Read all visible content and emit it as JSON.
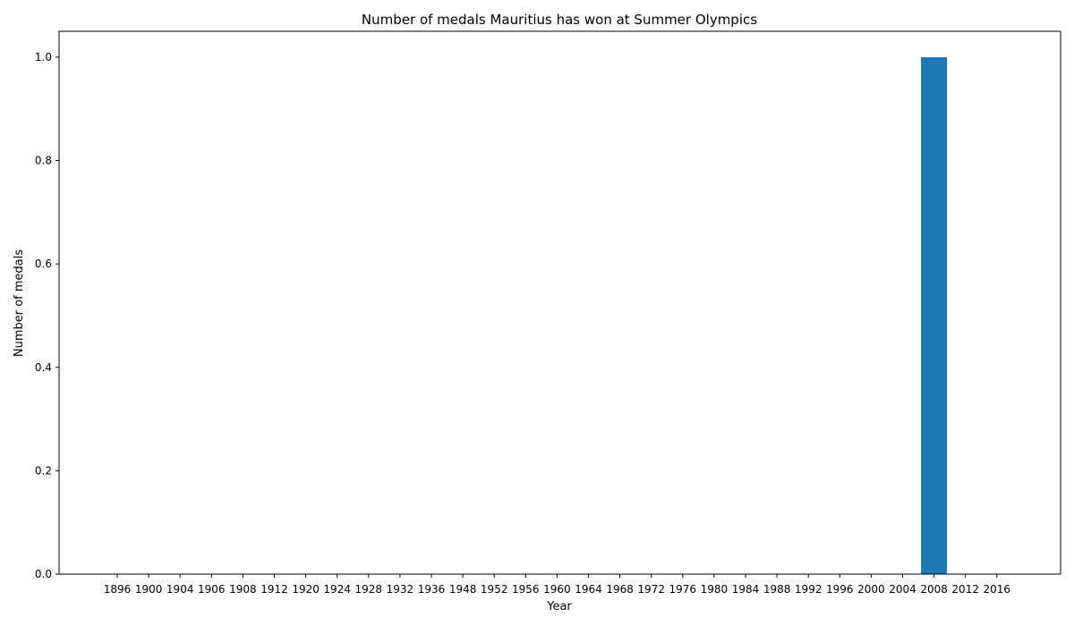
{
  "chart_data": {
    "type": "bar",
    "title": "Number of medals Mauritius has won at Summer Olympics",
    "xlabel": "Year",
    "ylabel": "Number of medals",
    "categories": [
      "1896",
      "1900",
      "1904",
      "1906",
      "1908",
      "1912",
      "1920",
      "1924",
      "1928",
      "1932",
      "1936",
      "1948",
      "1952",
      "1956",
      "1960",
      "1964",
      "1968",
      "1972",
      "1976",
      "1980",
      "1984",
      "1988",
      "1992",
      "1996",
      "2000",
      "2004",
      "2008",
      "2012",
      "2016"
    ],
    "values": [
      0,
      0,
      0,
      0,
      0,
      0,
      0,
      0,
      0,
      0,
      0,
      0,
      0,
      0,
      0,
      0,
      0,
      0,
      0,
      0,
      0,
      0,
      0,
      0,
      0,
      0,
      1,
      0,
      0
    ],
    "ylim": [
      0,
      1.05
    ],
    "yticks": [
      "0.0",
      "0.2",
      "0.4",
      "0.6",
      "0.8",
      "1.0"
    ],
    "grid": false,
    "bar_color": "#1f77b4"
  }
}
